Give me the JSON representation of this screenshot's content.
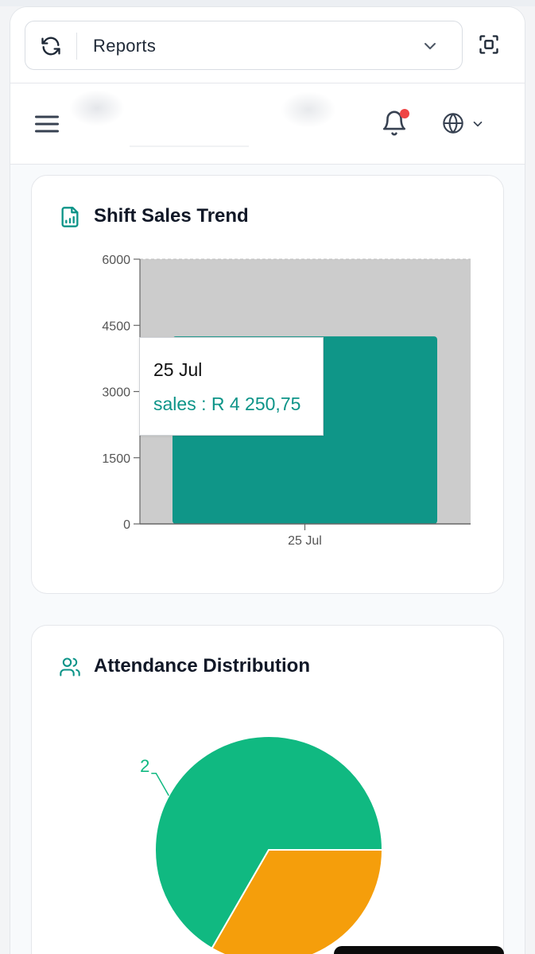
{
  "report_selector": {
    "value": "Reports"
  },
  "header": {
    "notification_badge": true
  },
  "sales_card": {
    "title": "Shift Sales Trend",
    "tooltip": {
      "label": "25 Jul",
      "series": "sales",
      "separator": " : ",
      "value": "R 4 250,75"
    }
  },
  "attendance_card": {
    "title": "Attendance Distribution"
  },
  "chart_data": [
    {
      "type": "bar",
      "categories": [
        "25 Jul"
      ],
      "series": [
        {
          "name": "sales",
          "values": [
            4250.75
          ]
        }
      ],
      "ylim": [
        0,
        6000
      ],
      "yticks": [
        "0",
        "1500",
        "3000",
        "4500",
        "6000"
      ],
      "xticks": [
        "25 Jul"
      ],
      "bar_color": "#0f9688",
      "cursor_color": "#cccccc"
    },
    {
      "type": "pie",
      "slices": [
        {
          "label": "2",
          "value": 2,
          "color": "#10b981"
        },
        {
          "label": "",
          "value": 1,
          "color": "#f59e0b"
        }
      ]
    }
  ],
  "colors": {
    "accent": "#0d9488",
    "badge": "#ef4444"
  }
}
